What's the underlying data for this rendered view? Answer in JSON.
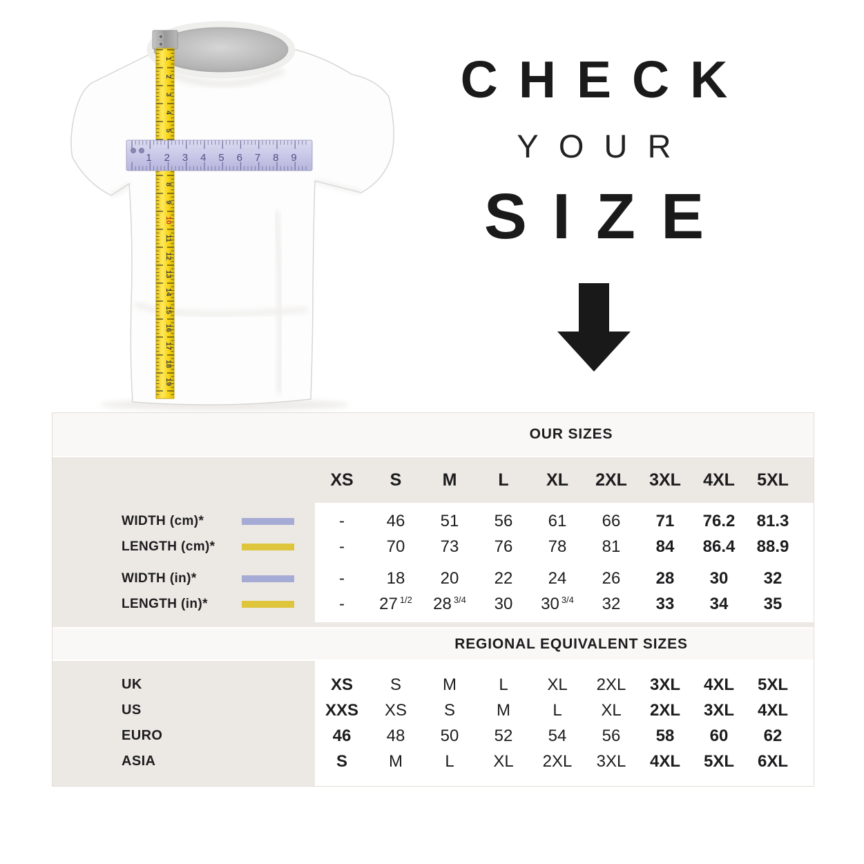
{
  "hero": {
    "line1": "CHECK",
    "line2": "YOUR",
    "line3": "SIZE",
    "arrow_icon": "down-arrow",
    "text_color": "#1a1a1a"
  },
  "tshirt": {
    "description": "white t-shirt with vertical yellow measuring tape (length) and horizontal lavender ruler (width)",
    "vertical_tape_numbers": [
      "1",
      "2",
      "3",
      "4",
      "5",
      "6",
      "7",
      "8",
      "9",
      "10",
      "11",
      "12",
      "13",
      "14",
      "15",
      "16",
      "17",
      "18",
      "19"
    ],
    "horizontal_ruler_numbers": [
      "1",
      "2",
      "3",
      "4",
      "5",
      "6",
      "7",
      "8",
      "9"
    ],
    "tape_color": "#f7d414",
    "ruler_color": "#c9c8e8"
  },
  "table": {
    "our_sizes": {
      "title": "OUR SIZES",
      "sizes": [
        "XS",
        "S",
        "M",
        "L",
        "XL",
        "2XL",
        "3XL",
        "4XL",
        "5XL"
      ],
      "rows": [
        {
          "label": "WIDTH (cm)*",
          "swatch": "lavender",
          "group": 1,
          "cells": [
            {
              "t": "-"
            },
            {
              "t": "46"
            },
            {
              "t": "51"
            },
            {
              "t": "56"
            },
            {
              "t": "61"
            },
            {
              "t": "66"
            },
            {
              "t": "71",
              "b": 1
            },
            {
              "t": "76.2",
              "b": 1
            },
            {
              "t": "81.3",
              "b": 1
            }
          ]
        },
        {
          "label": "LENGTH (cm)*",
          "swatch": "yellow",
          "group": 1,
          "cells": [
            {
              "t": "-"
            },
            {
              "t": "70"
            },
            {
              "t": "73"
            },
            {
              "t": "76"
            },
            {
              "t": "78"
            },
            {
              "t": "81"
            },
            {
              "t": "84",
              "b": 1
            },
            {
              "t": "86.4",
              "b": 1
            },
            {
              "t": "88.9",
              "b": 1
            }
          ]
        },
        {
          "label": "WIDTH (in)*",
          "swatch": "lavender",
          "group": 2,
          "cells": [
            {
              "t": "-"
            },
            {
              "t": "18"
            },
            {
              "t": "20"
            },
            {
              "t": "22"
            },
            {
              "t": "24"
            },
            {
              "t": "26"
            },
            {
              "t": "28",
              "b": 1
            },
            {
              "t": "30",
              "b": 1
            },
            {
              "t": "32",
              "b": 1
            }
          ]
        },
        {
          "label": "LENGTH (in)*",
          "swatch": "yellow",
          "group": 2,
          "cells": [
            {
              "t": "-"
            },
            {
              "t": "27",
              "sup": "1/2"
            },
            {
              "t": "28",
              "sup": "3/4"
            },
            {
              "t": "30"
            },
            {
              "t": "30",
              "sup": "3/4"
            },
            {
              "t": "32"
            },
            {
              "t": "33",
              "b": 1
            },
            {
              "t": "34",
              "b": 1
            },
            {
              "t": "35",
              "b": 1
            }
          ]
        }
      ]
    },
    "regional": {
      "title": "REGIONAL EQUIVALENT SIZES",
      "rows": [
        {
          "label": "UK",
          "cells": [
            {
              "t": "XS",
              "b": 1
            },
            {
              "t": "S"
            },
            {
              "t": "M"
            },
            {
              "t": "L"
            },
            {
              "t": "XL"
            },
            {
              "t": "2XL"
            },
            {
              "t": "3XL",
              "b": 1
            },
            {
              "t": "4XL",
              "b": 1
            },
            {
              "t": "5XL",
              "b": 1
            }
          ]
        },
        {
          "label": "US",
          "cells": [
            {
              "t": "XXS",
              "b": 1
            },
            {
              "t": "XS"
            },
            {
              "t": "S"
            },
            {
              "t": "M"
            },
            {
              "t": "L"
            },
            {
              "t": "XL"
            },
            {
              "t": "2XL",
              "b": 1
            },
            {
              "t": "3XL",
              "b": 1
            },
            {
              "t": "4XL",
              "b": 1
            }
          ]
        },
        {
          "label": "EURO",
          "cells": [
            {
              "t": "46",
              "b": 1
            },
            {
              "t": "48"
            },
            {
              "t": "50"
            },
            {
              "t": "52"
            },
            {
              "t": "54"
            },
            {
              "t": "56"
            },
            {
              "t": "58",
              "b": 1
            },
            {
              "t": "60",
              "b": 1
            },
            {
              "t": "62",
              "b": 1
            }
          ]
        },
        {
          "label": "ASIA",
          "cells": [
            {
              "t": "S",
              "b": 1
            },
            {
              "t": "M"
            },
            {
              "t": "L"
            },
            {
              "t": "XL"
            },
            {
              "t": "2XL"
            },
            {
              "t": "3XL"
            },
            {
              "t": "4XL",
              "b": 1
            },
            {
              "t": "5XL",
              "b": 1
            },
            {
              "t": "6XL",
              "b": 1
            }
          ]
        }
      ]
    },
    "colors": {
      "beige": "#ece8e3",
      "band": "#faf8f6",
      "text": "#1c1c1e",
      "lavender": "#a6abd6",
      "yellow": "#dfc53c"
    }
  }
}
